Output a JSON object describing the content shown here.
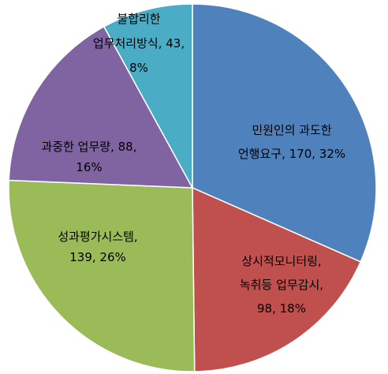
{
  "chart_data": {
    "type": "pie",
    "title": "",
    "start_angle_deg": 0,
    "direction": "clockwise",
    "legend": "none",
    "slices": [
      {
        "id": "complainant",
        "label_lines": [
          "민원인의 과도한",
          "언행요구, 170, 32%"
        ],
        "category": "민원인의 과도한 언행요구",
        "value": 170,
        "percent": "32%",
        "color": "#4f81bd"
      },
      {
        "id": "monitoring",
        "label_lines": [
          "상시적모니터링,",
          "녹취등 업무감시,",
          "98, 18%"
        ],
        "category": "상시적모니터링, 녹취등 업무감시",
        "value": 98,
        "percent": "18%",
        "color": "#c0504d"
      },
      {
        "id": "evaluation",
        "label_lines": [
          "성과평가시스템,",
          "139, 26%"
        ],
        "category": "성과평가시스템",
        "value": 139,
        "percent": "26%",
        "color": "#9bbb59"
      },
      {
        "id": "workload",
        "label_lines": [
          "과중한 업무량, 88,",
          "16%"
        ],
        "category": "과중한 업무량",
        "value": 88,
        "percent": "16%",
        "color": "#8064a2"
      },
      {
        "id": "unreasonable",
        "label_lines": [
          "불합리한",
          "업무처리방식, 43,",
          "8%"
        ],
        "category": "불합리한 업무처리방식",
        "value": 43,
        "percent": "8%",
        "color": "#4bacc6"
      }
    ]
  }
}
